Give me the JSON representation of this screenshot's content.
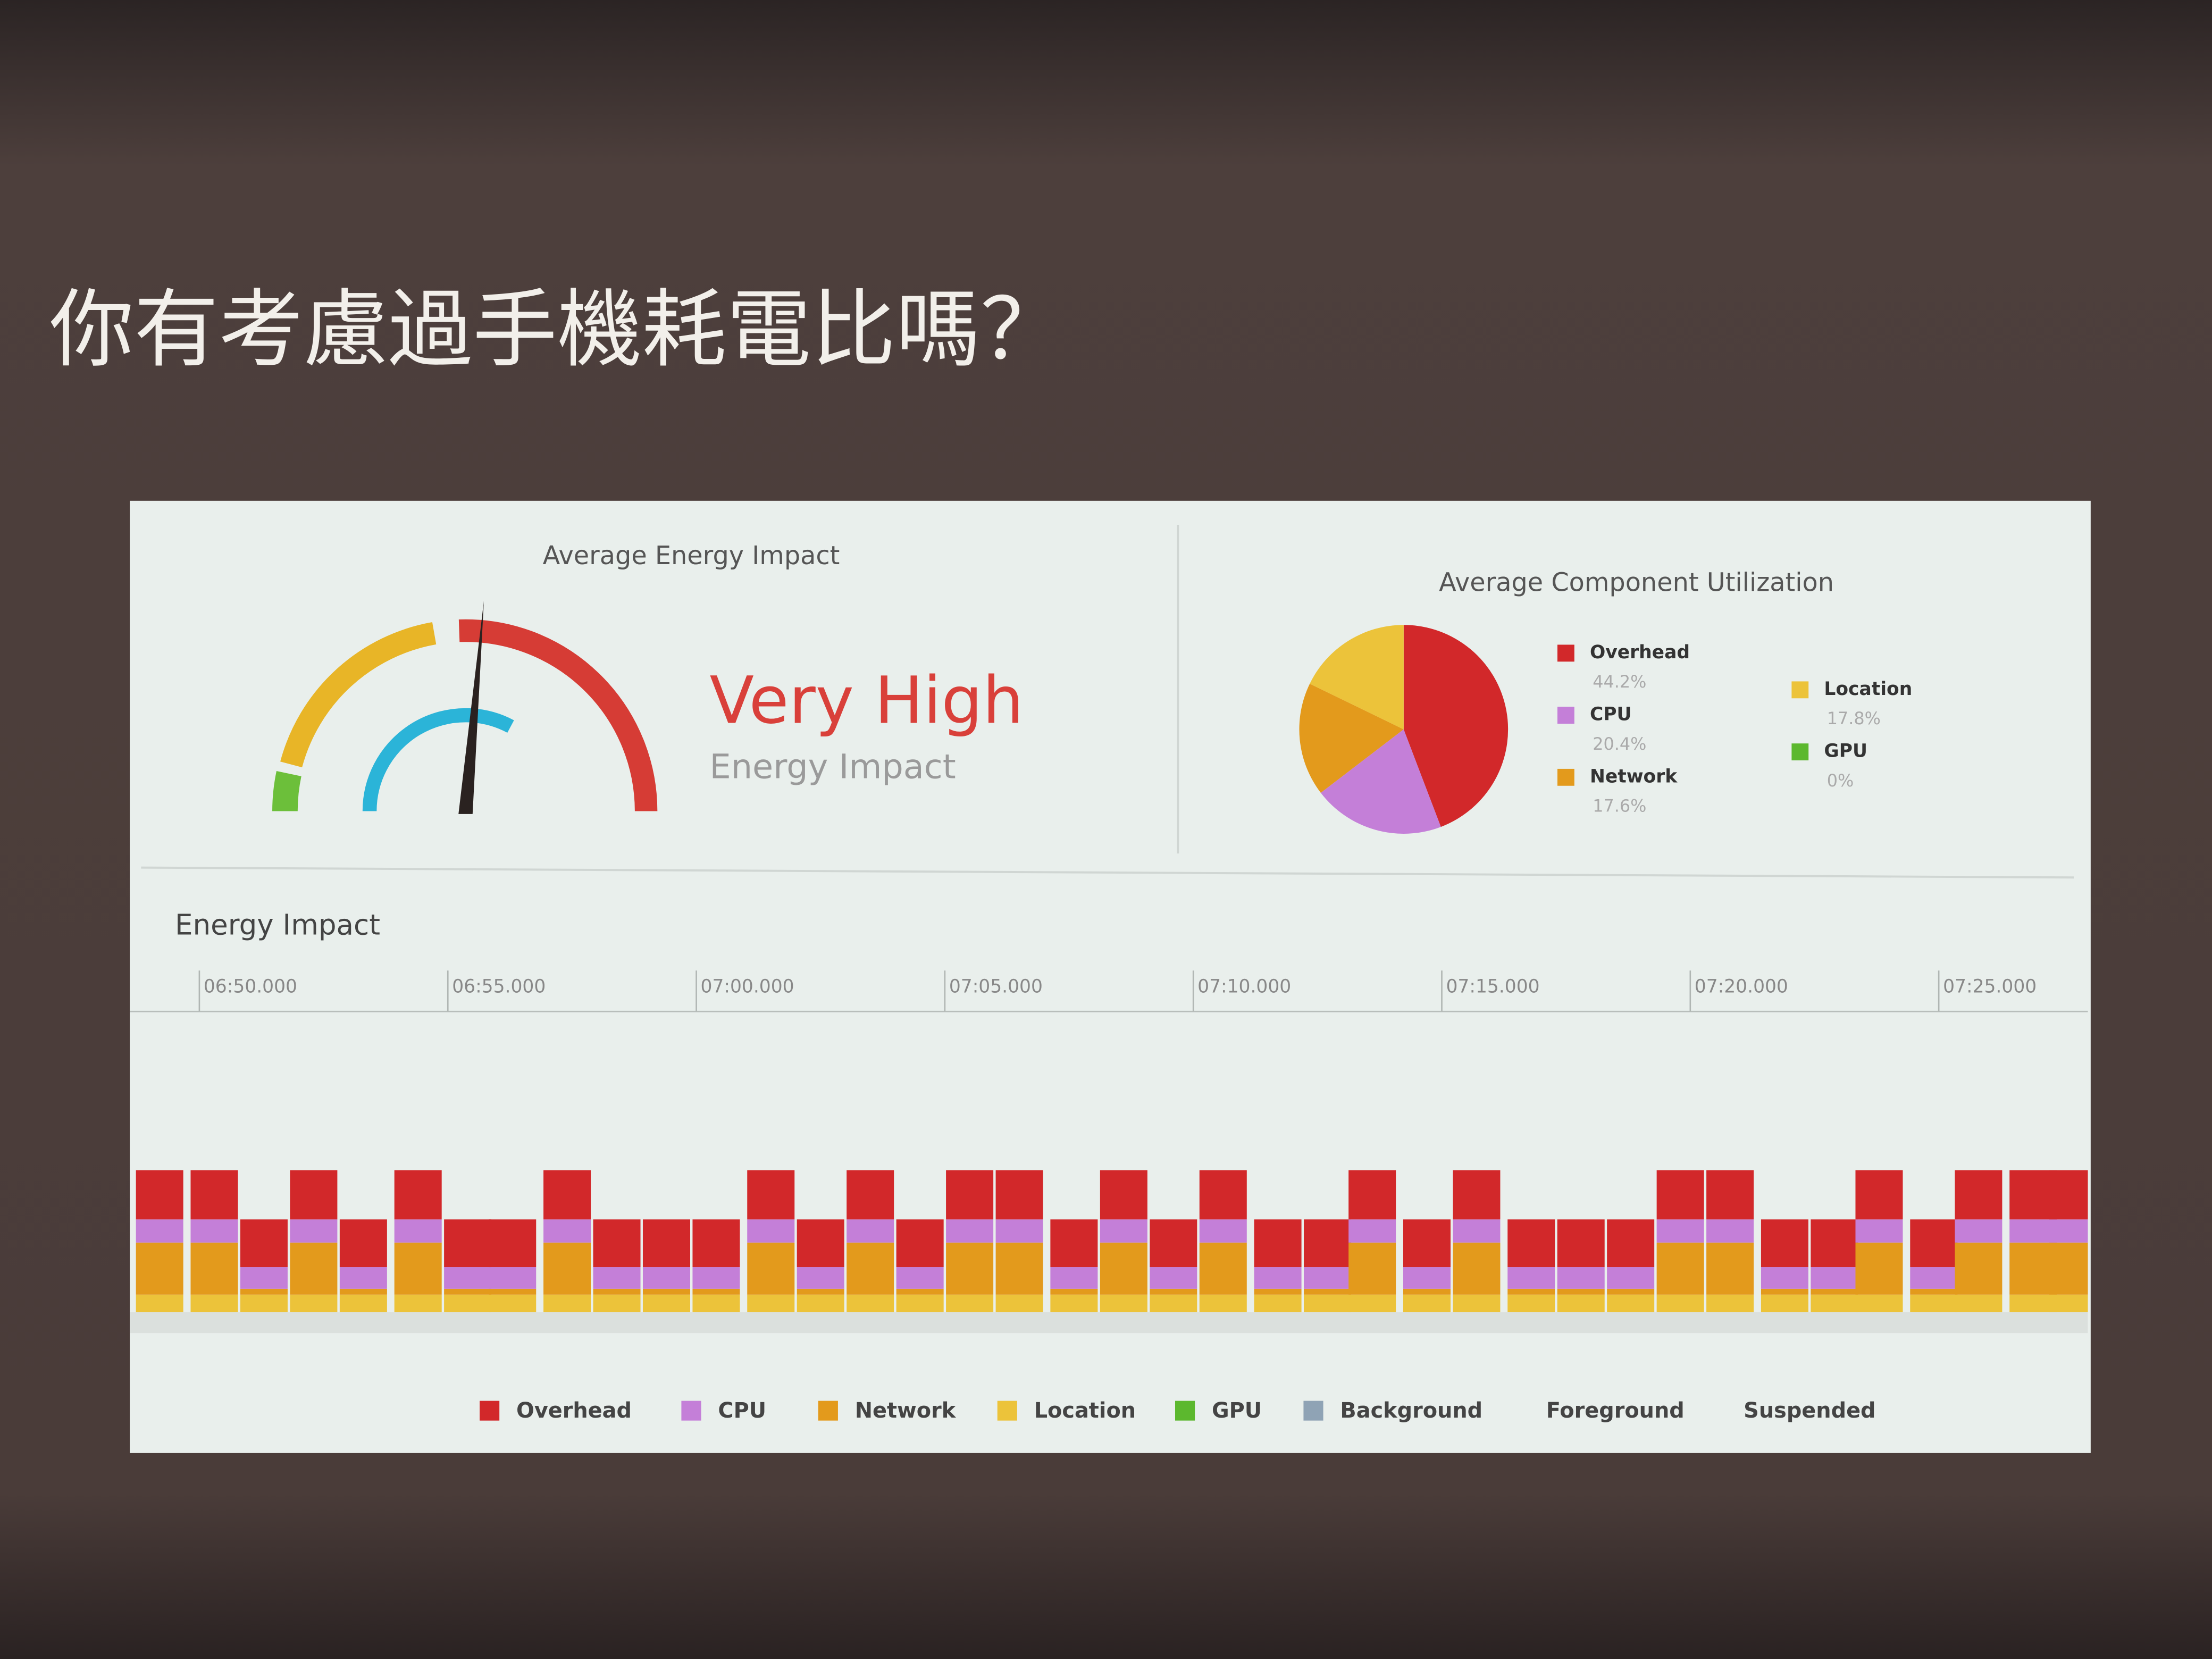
{
  "slide_title": "你有考慮過手機耗電比嗎？",
  "gauge": {
    "title": "Average Energy Impact",
    "level": "Very High",
    "caption": "Energy Impact"
  },
  "chart_data": [
    {
      "type": "pie",
      "title": "Average Component Utilization",
      "categories": [
        "Overhead",
        "CPU",
        "Network",
        "Location",
        "GPU"
      ],
      "values": [
        44.2,
        20.4,
        17.6,
        17.8,
        0
      ],
      "value_labels": [
        "44.2%",
        "20.4%",
        "17.6%",
        "17.8%",
        "0%"
      ],
      "colors": [
        "#d2282a",
        "#c47fd8",
        "#e39a1c",
        "#ecc33a",
        "#5cb82e"
      ]
    },
    {
      "type": "stacked_bar",
      "title": "Energy Impact",
      "x": [
        409.2,
        410.3,
        411.3,
        412.3,
        413.3,
        414.4,
        415.4,
        416.3,
        417.4,
        418.4,
        419.4,
        420.4,
        421.5,
        422.5,
        423.5,
        424.5,
        425.5,
        426.5,
        427.6,
        428.6,
        429.6,
        430.6,
        431.7,
        432.7,
        433.6,
        434.7,
        435.7,
        436.8,
        437.8,
        438.8,
        439.8,
        440.8,
        441.9,
        442.9,
        443.8,
        444.9,
        445.8,
        446.9,
        447.7
      ],
      "xlim": [
        408.6,
        448.0
      ],
      "xticks": [
        {
          "value": 410,
          "label": "06:50.000"
        },
        {
          "value": 415,
          "label": "06:55.000"
        },
        {
          "value": 420,
          "label": "07:00.000"
        },
        {
          "value": 425,
          "label": "07:05.000"
        },
        {
          "value": 430,
          "label": "07:10.000"
        },
        {
          "value": 435,
          "label": "07:15.000"
        },
        {
          "value": 440,
          "label": "07:20.000"
        },
        {
          "value": 445,
          "label": "07:25.000"
        }
      ],
      "ylim": [
        0,
        200
      ],
      "series": [
        {
          "name": "Overhead",
          "color": "#d2282a",
          "values": [
            34,
            34,
            33,
            34,
            33,
            34,
            33,
            33,
            34,
            33,
            33,
            33,
            34,
            33,
            34,
            33,
            34,
            34,
            33,
            34,
            33,
            34,
            33,
            33,
            34,
            33,
            34,
            33,
            33,
            33,
            34,
            34,
            33,
            33,
            34,
            33,
            34,
            34,
            34
          ]
        },
        {
          "name": "CPU",
          "color": "#c47fd8",
          "values": [
            16,
            16,
            15,
            16,
            15,
            16,
            15,
            15,
            16,
            15,
            15,
            15,
            16,
            15,
            16,
            15,
            16,
            16,
            15,
            16,
            15,
            16,
            15,
            15,
            16,
            15,
            16,
            15,
            15,
            15,
            16,
            16,
            15,
            15,
            16,
            15,
            16,
            16,
            16
          ]
        },
        {
          "name": "Network",
          "color": "#e39a1c",
          "values": [
            36,
            36,
            4,
            36,
            4,
            36,
            4,
            4,
            36,
            4,
            4,
            4,
            36,
            4,
            36,
            4,
            36,
            36,
            4,
            36,
            4,
            36,
            4,
            4,
            36,
            4,
            36,
            4,
            4,
            4,
            36,
            36,
            4,
            4,
            36,
            4,
            36,
            36,
            36
          ]
        },
        {
          "name": "Location",
          "color": "#ecc33a",
          "values": [
            12,
            12,
            12,
            12,
            12,
            12,
            12,
            12,
            12,
            12,
            12,
            12,
            12,
            12,
            12,
            12,
            12,
            12,
            12,
            12,
            12,
            12,
            12,
            12,
            12,
            12,
            12,
            12,
            12,
            12,
            12,
            12,
            12,
            12,
            12,
            12,
            12,
            12,
            12
          ]
        },
        {
          "name": "GPU",
          "color": "#5cb82e",
          "values": [
            0,
            0,
            0,
            0,
            0,
            0,
            0,
            0,
            0,
            0,
            0,
            0,
            0,
            0,
            0,
            0,
            0,
            0,
            0,
            0,
            0,
            0,
            0,
            0,
            0,
            0,
            0,
            0,
            0,
            0,
            0,
            0,
            0,
            0,
            0,
            0,
            0,
            0,
            0
          ]
        },
        {
          "name": "Background",
          "color": "#8fa3b5",
          "values": [
            null,
            null,
            null,
            null,
            null,
            null,
            null,
            null,
            null,
            null,
            null,
            null,
            null,
            null,
            null,
            null,
            null,
            null,
            null,
            null,
            null,
            null,
            null,
            null,
            null,
            null,
            null,
            null,
            null,
            null,
            null,
            null,
            null,
            null,
            null,
            null,
            null,
            null,
            null
          ]
        },
        {
          "name": "Foreground",
          "color": "#e9efec",
          "values": [
            null,
            null,
            null,
            null,
            null,
            null,
            null,
            null,
            null,
            null,
            null,
            null,
            null,
            null,
            null,
            null,
            null,
            null,
            null,
            null,
            null,
            null,
            null,
            null,
            null,
            null,
            null,
            null,
            null,
            null,
            null,
            null,
            null,
            null,
            null,
            null,
            null,
            null,
            null
          ]
        },
        {
          "name": "Suspended",
          "color": "#e9efec",
          "values": [
            null,
            null,
            null,
            null,
            null,
            null,
            null,
            null,
            null,
            null,
            null,
            null,
            null,
            null,
            null,
            null,
            null,
            null,
            null,
            null,
            null,
            null,
            null,
            null,
            null,
            null,
            null,
            null,
            null,
            null,
            null,
            null,
            null,
            null,
            null,
            null,
            null,
            null,
            null
          ]
        }
      ]
    }
  ]
}
